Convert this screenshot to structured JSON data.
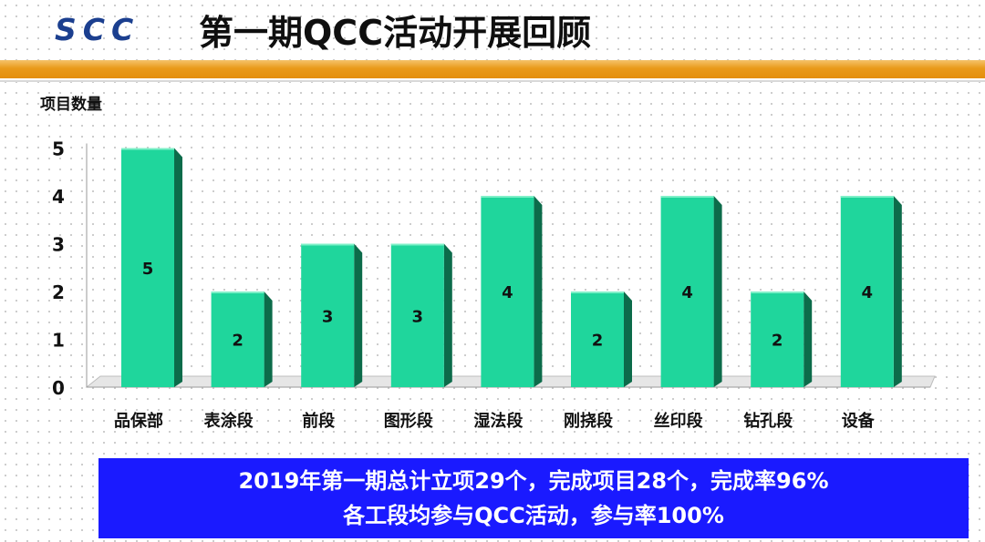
{
  "header": {
    "logo_text": "SCC",
    "title": "第一期QCC活动开展回顾",
    "accent_color": "#e99a1a"
  },
  "chart_data": {
    "type": "bar",
    "title": "",
    "xlabel": "",
    "ylabel": "项目数量",
    "categories": [
      "品保部",
      "表涂段",
      "前段",
      "图形段",
      "湿法段",
      "刚挠段",
      "丝印段",
      "钻孔段",
      "设备"
    ],
    "values": [
      5,
      2,
      3,
      3,
      4,
      2,
      4,
      2,
      4
    ],
    "yticks": [
      "0",
      "1",
      "2",
      "3",
      "4",
      "5"
    ],
    "ylim": [
      0,
      5
    ],
    "grid": false,
    "legend": "none",
    "bar_color": "#1fd69c",
    "data_labels": [
      "5",
      "2",
      "3",
      "3",
      "4",
      "2",
      "4",
      "2",
      "4"
    ]
  },
  "banner": {
    "line1": "2019年第一期总计立项29个，完成项目28个，完成率96%",
    "line2": "各工段均参与QCC活动，参与率100%",
    "background": "#1a1aff"
  }
}
